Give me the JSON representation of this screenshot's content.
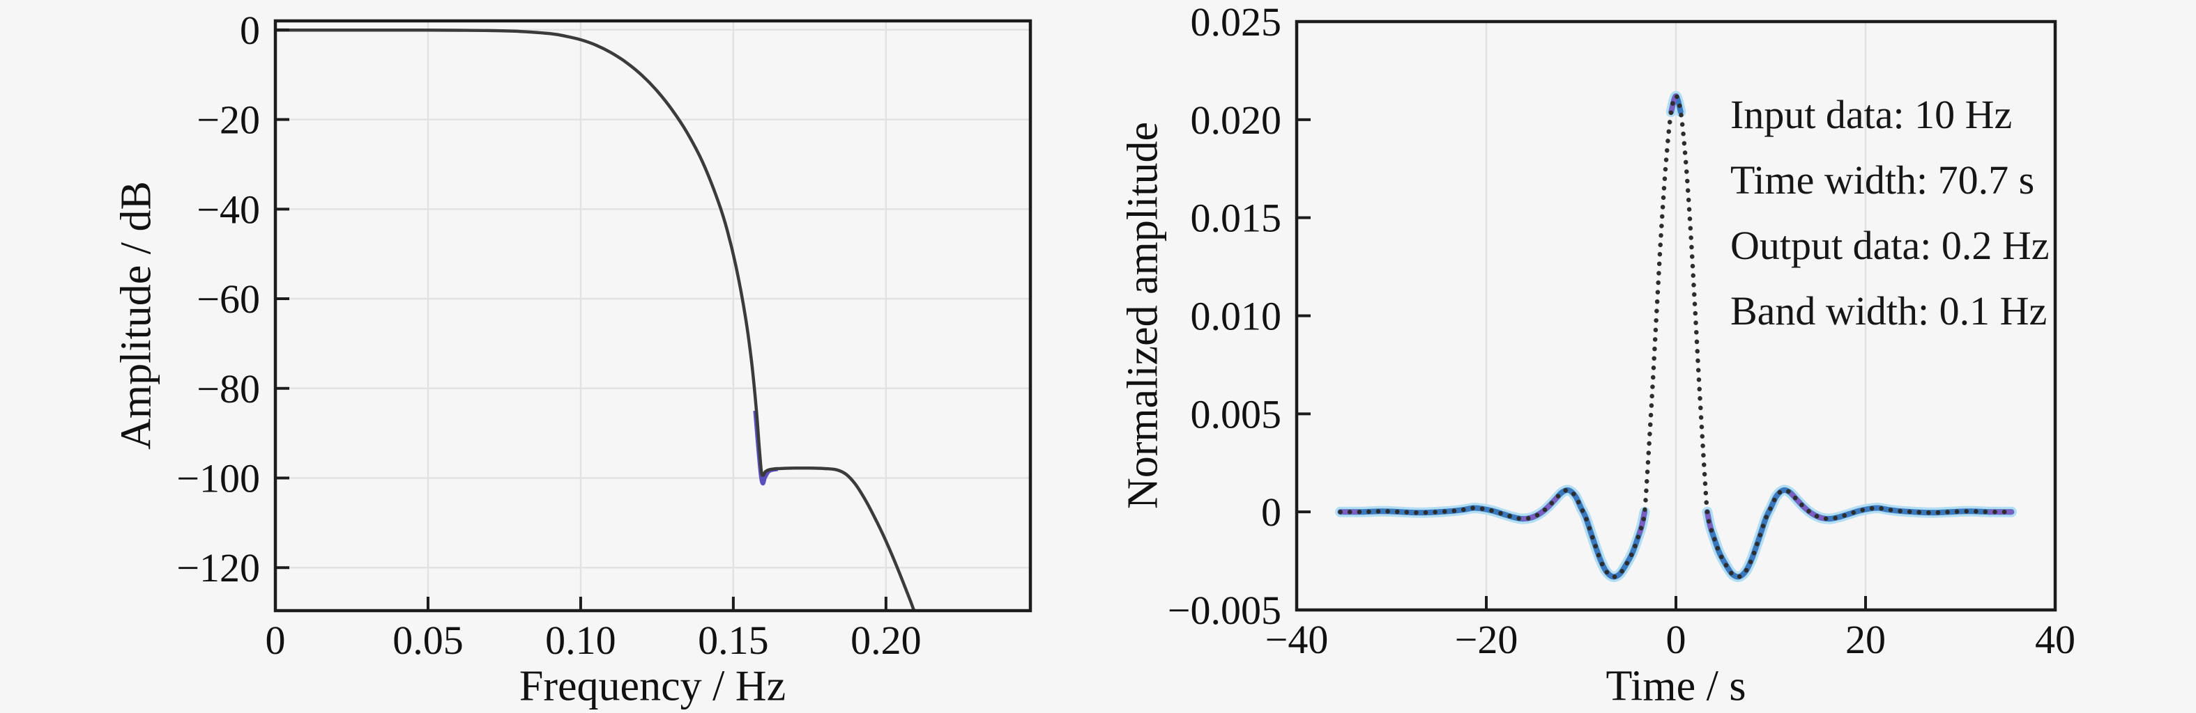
{
  "figure": {
    "background_color": "#f6f6f6",
    "frame_color": "#1c1c1c",
    "grid_color": "#e2e2e2",
    "text_color": "#111111"
  },
  "chart_data": [
    {
      "type": "line",
      "title": "",
      "xlabel": "Frequency / Hz",
      "ylabel": "Amplitude / dB",
      "xlim": [
        0,
        0.2473
      ],
      "ylim": [
        -129.6,
        2.0
      ],
      "xticks": [
        0,
        0.05,
        0.1,
        0.15,
        0.2
      ],
      "xticklabels": [
        "0",
        "0.05",
        "0.10",
        "0.15",
        "0.20"
      ],
      "yticks": [
        0,
        -20,
        -40,
        -60,
        -80,
        -100,
        -120
      ],
      "yticklabels": [
        "0",
        "−20",
        "−40",
        "−60",
        "−80",
        "−100",
        "−120"
      ],
      "grid": "both",
      "legend": "none",
      "series": [
        {
          "name": "stopband-notch-underlay",
          "color": "#5b4fc0",
          "width": 6,
          "style": "solid",
          "points": [
            [
              0.1572,
              -85
            ],
            [
              0.1583,
              -94
            ],
            [
              0.1591,
              -99.6
            ],
            [
              0.1597,
              -101.2
            ],
            [
              0.1604,
              -99.8
            ],
            [
              0.1618,
              -98.4
            ],
            [
              0.1645,
              -98.0
            ]
          ]
        },
        {
          "name": "filter-magnitude-response",
          "color": "#3b3b3b",
          "width": 4.5,
          "style": "solid",
          "points": [
            [
              0,
              -0.05
            ],
            [
              0.01,
              -0.05
            ],
            [
              0.02,
              -0.05
            ],
            [
              0.03,
              -0.05
            ],
            [
              0.04,
              -0.05
            ],
            [
              0.05,
              -0.06
            ],
            [
              0.06,
              -0.09
            ],
            [
              0.07,
              -0.16
            ],
            [
              0.08,
              -0.35
            ],
            [
              0.09,
              -0.85
            ],
            [
              0.095,
              -1.4
            ],
            [
              0.1,
              -2.2
            ],
            [
              0.105,
              -3.4
            ],
            [
              0.11,
              -5.1
            ],
            [
              0.115,
              -7.3
            ],
            [
              0.12,
              -10.1
            ],
            [
              0.125,
              -13.6
            ],
            [
              0.13,
              -17.9
            ],
            [
              0.135,
              -23.1
            ],
            [
              0.14,
              -29.6
            ],
            [
              0.145,
              -38.2
            ],
            [
              0.148,
              -44.7
            ],
            [
              0.151,
              -53.2
            ],
            [
              0.154,
              -64.2
            ],
            [
              0.156,
              -74.2
            ],
            [
              0.1575,
              -84.4
            ],
            [
              0.1585,
              -93.2
            ],
            [
              0.1592,
              -98.6
            ],
            [
              0.1598,
              -99.4
            ],
            [
              0.1605,
              -98.6
            ],
            [
              0.162,
              -98.1
            ],
            [
              0.165,
              -97.9
            ],
            [
              0.17,
              -97.8
            ],
            [
              0.175,
              -97.8
            ],
            [
              0.18,
              -97.9
            ],
            [
              0.184,
              -98.2
            ],
            [
              0.187,
              -99.2
            ],
            [
              0.19,
              -101.4
            ],
            [
              0.193,
              -104.6
            ],
            [
              0.196,
              -108.4
            ],
            [
              0.199,
              -112.6
            ],
            [
              0.202,
              -117.2
            ],
            [
              0.205,
              -122.2
            ],
            [
              0.208,
              -127.4
            ],
            [
              0.211,
              -133
            ],
            [
              0.213,
              -136
            ]
          ]
        }
      ]
    },
    {
      "type": "line",
      "title": "",
      "xlabel": "Time / s",
      "ylabel": "Normalized amplitude",
      "xlim": [
        -40,
        40
      ],
      "ylim": [
        -0.005,
        0.025
      ],
      "xticks": [
        -40,
        -20,
        0,
        20,
        40
      ],
      "xticklabels": [
        "−40",
        "−20",
        "0",
        "20",
        "40"
      ],
      "yticks": [
        0.025,
        0.02,
        0.015,
        0.01,
        0.005,
        0,
        -0.005
      ],
      "yticklabels": [
        "0.025",
        "0.020",
        "0.015",
        "0.010",
        "0.005",
        "0",
        "−0.005"
      ],
      "grid": "x",
      "legend": "none",
      "annotations": [
        "Input data: 10 Hz",
        "Time width: 70.7 s",
        "Output data: 0.2 Hz",
        "Band width: 0.1 Hz"
      ],
      "peak_value": 0.0212,
      "trough_value": -0.0033,
      "colors": {
        "halo": "#b2ddf3",
        "blue": "#3a78be",
        "purple": "#7b5ec2",
        "dots": "#2d2d2d"
      },
      "blue_segments": [
        [
          -35.4,
          -3.1
        ],
        [
          -0.75,
          0.75
        ],
        [
          3.1,
          35.4
        ]
      ],
      "series": [
        {
          "name": "wavelet",
          "points": [
            [
              -35.4,
              0
            ],
            [
              -33,
              0
            ],
            [
              -31,
              3e-05
            ],
            [
              -29,
              0
            ],
            [
              -27,
              -4e-05
            ],
            [
              -25,
              0
            ],
            [
              -23.5,
              5e-05
            ],
            [
              -22.3,
              0.00012
            ],
            [
              -21.3,
              0.0002
            ],
            [
              -20.3,
              0.00015
            ],
            [
              -19.3,
              5e-05
            ],
            [
              -18.3,
              -0.0001
            ],
            [
              -17.3,
              -0.00025
            ],
            [
              -16.3,
              -0.00035
            ],
            [
              -15.3,
              -0.0003
            ],
            [
              -14.4,
              -0.0001
            ],
            [
              -13.6,
              0.0002
            ],
            [
              -12.8,
              0.0006
            ],
            [
              -12,
              0.001
            ],
            [
              -11.3,
              0.0011
            ],
            [
              -10.6,
              0.0008
            ],
            [
              -10,
              0.0002
            ],
            [
              -9.5,
              -0.0003
            ],
            [
              -8.8,
              -0.0013
            ],
            [
              -8,
              -0.0024
            ],
            [
              -7.4,
              -0.003
            ],
            [
              -6.7,
              -0.0033
            ],
            [
              -6,
              -0.0032
            ],
            [
              -5.4,
              -0.0028
            ],
            [
              -4.6,
              -0.0021
            ],
            [
              -4,
              -0.0013
            ],
            [
              -3.6,
              -0.0007
            ],
            [
              -3.3,
              0
            ],
            [
              -3,
              0.0021
            ],
            [
              -2.5,
              0.0061
            ],
            [
              -2,
              0.0105
            ],
            [
              -1.5,
              0.0147
            ],
            [
              -1,
              0.0181
            ],
            [
              -0.5,
              0.0204
            ],
            [
              0,
              0.0212
            ],
            [
              0.5,
              0.0204
            ],
            [
              1,
              0.0181
            ],
            [
              1.5,
              0.0147
            ],
            [
              2,
              0.0105
            ],
            [
              2.5,
              0.0061
            ],
            [
              3,
              0.0021
            ],
            [
              3.3,
              0
            ],
            [
              3.6,
              -0.0007
            ],
            [
              4,
              -0.0013
            ],
            [
              4.6,
              -0.0021
            ],
            [
              5.4,
              -0.0028
            ],
            [
              6,
              -0.0032
            ],
            [
              6.7,
              -0.0033
            ],
            [
              7.4,
              -0.003
            ],
            [
              8,
              -0.0024
            ],
            [
              8.8,
              -0.0013
            ],
            [
              9.5,
              -0.0003
            ],
            [
              10,
              0.0002
            ],
            [
              10.6,
              0.0008
            ],
            [
              11.3,
              0.0011
            ],
            [
              12,
              0.001
            ],
            [
              12.8,
              0.0006
            ],
            [
              13.6,
              0.0002
            ],
            [
              14.4,
              -0.0001
            ],
            [
              15.3,
              -0.0003
            ],
            [
              16.3,
              -0.00035
            ],
            [
              17.3,
              -0.00025
            ],
            [
              18.3,
              -0.0001
            ],
            [
              19.3,
              5e-05
            ],
            [
              20.3,
              0.00015
            ],
            [
              21.3,
              0.0002
            ],
            [
              22.3,
              0.00012
            ],
            [
              23.5,
              5e-05
            ],
            [
              25,
              0
            ],
            [
              27,
              -4e-05
            ],
            [
              29,
              0
            ],
            [
              31,
              3e-05
            ],
            [
              33,
              0
            ],
            [
              35.4,
              0
            ]
          ]
        }
      ]
    }
  ]
}
